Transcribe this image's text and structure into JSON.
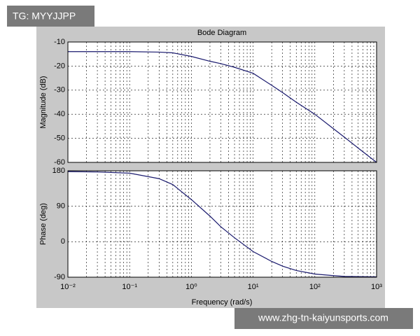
{
  "chart_data": [
    {
      "type": "line",
      "title": "Bode Diagram",
      "ylabel": "Magnitude (dB)",
      "xscale": "log",
      "grid": true,
      "minor_grid": true,
      "show_xtick_labels": false,
      "xlim": [
        0.01,
        1000
      ],
      "xticks": [
        0.01,
        0.1,
        1,
        10,
        100,
        1000
      ],
      "ylim": [
        -60,
        -10
      ],
      "yticks": [
        -60,
        -50,
        -40,
        -30,
        -20,
        -10
      ],
      "series": [
        {
          "color": "#1a1a6e",
          "x": [
            0.01,
            0.03,
            0.1,
            0.3,
            0.5,
            1,
            2,
            3,
            5,
            10,
            20,
            30,
            50,
            100,
            200,
            300,
            500,
            1000
          ],
          "values": [
            -14,
            -14,
            -14,
            -14.2,
            -14.5,
            -16,
            -18,
            -19,
            -20.5,
            -23,
            -28,
            -31,
            -35,
            -40,
            -46,
            -49.5,
            -54,
            -60
          ]
        }
      ]
    },
    {
      "type": "line",
      "ylabel": "Phase (deg)",
      "xlabel": "Frequency  (rad/s)",
      "xscale": "log",
      "grid": true,
      "minor_grid": true,
      "show_xtick_labels": true,
      "xlim": [
        0.01,
        1000
      ],
      "xticks": [
        {
          "value": 0.01,
          "label": "10⁻²"
        },
        {
          "value": 0.1,
          "label": "10⁻¹"
        },
        {
          "value": 1,
          "label": "10⁰"
        },
        {
          "value": 10,
          "label": "10¹"
        },
        {
          "value": 100,
          "label": "10²"
        },
        {
          "value": 1000,
          "label": "10³"
        }
      ],
      "ylim": [
        -90,
        180
      ],
      "yticks": [
        -90,
        0,
        90,
        180
      ],
      "series": [
        {
          "color": "#1a1a6e",
          "x": [
            0.01,
            0.03,
            0.1,
            0.3,
            0.5,
            1,
            2,
            3,
            5,
            10,
            20,
            30,
            50,
            100,
            200,
            300,
            1000
          ],
          "values": [
            178,
            177,
            174,
            160,
            145,
            107,
            65,
            38,
            10,
            -25,
            -50,
            -62,
            -73,
            -82,
            -86,
            -88,
            -89
          ]
        }
      ]
    }
  ],
  "overlay": {
    "tag": "TG: MYYJJPP",
    "url": "www.zhg-tn-kaiyunsports.com"
  }
}
